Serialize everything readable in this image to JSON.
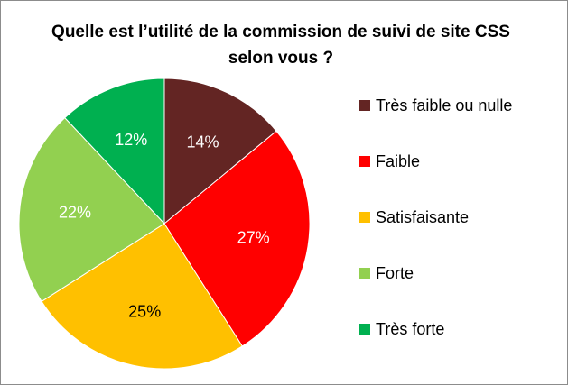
{
  "chart_data": {
    "type": "pie",
    "title": "Quelle est l’utilité de la commission de suivi de site CSS selon vous ?",
    "legend_position": "right",
    "start_angle_deg": 0,
    "direction": "clockwise",
    "slices": [
      {
        "label": "Très faible ou nulle",
        "value": 14,
        "display": "14%",
        "color": "#632523",
        "text_color": "#ffffff"
      },
      {
        "label": "Faible",
        "value": 27,
        "display": "27%",
        "color": "#ff0000",
        "text_color": "#ffffff"
      },
      {
        "label": "Satisfaisante",
        "value": 25,
        "display": "25%",
        "color": "#ffc000",
        "text_color": "#000000"
      },
      {
        "label": "Forte",
        "value": 22,
        "display": "22%",
        "color": "#92d050",
        "text_color": "#ffffff"
      },
      {
        "label": "Très forte",
        "value": 12,
        "display": "12%",
        "color": "#00b050",
        "text_color": "#ffffff"
      }
    ]
  }
}
